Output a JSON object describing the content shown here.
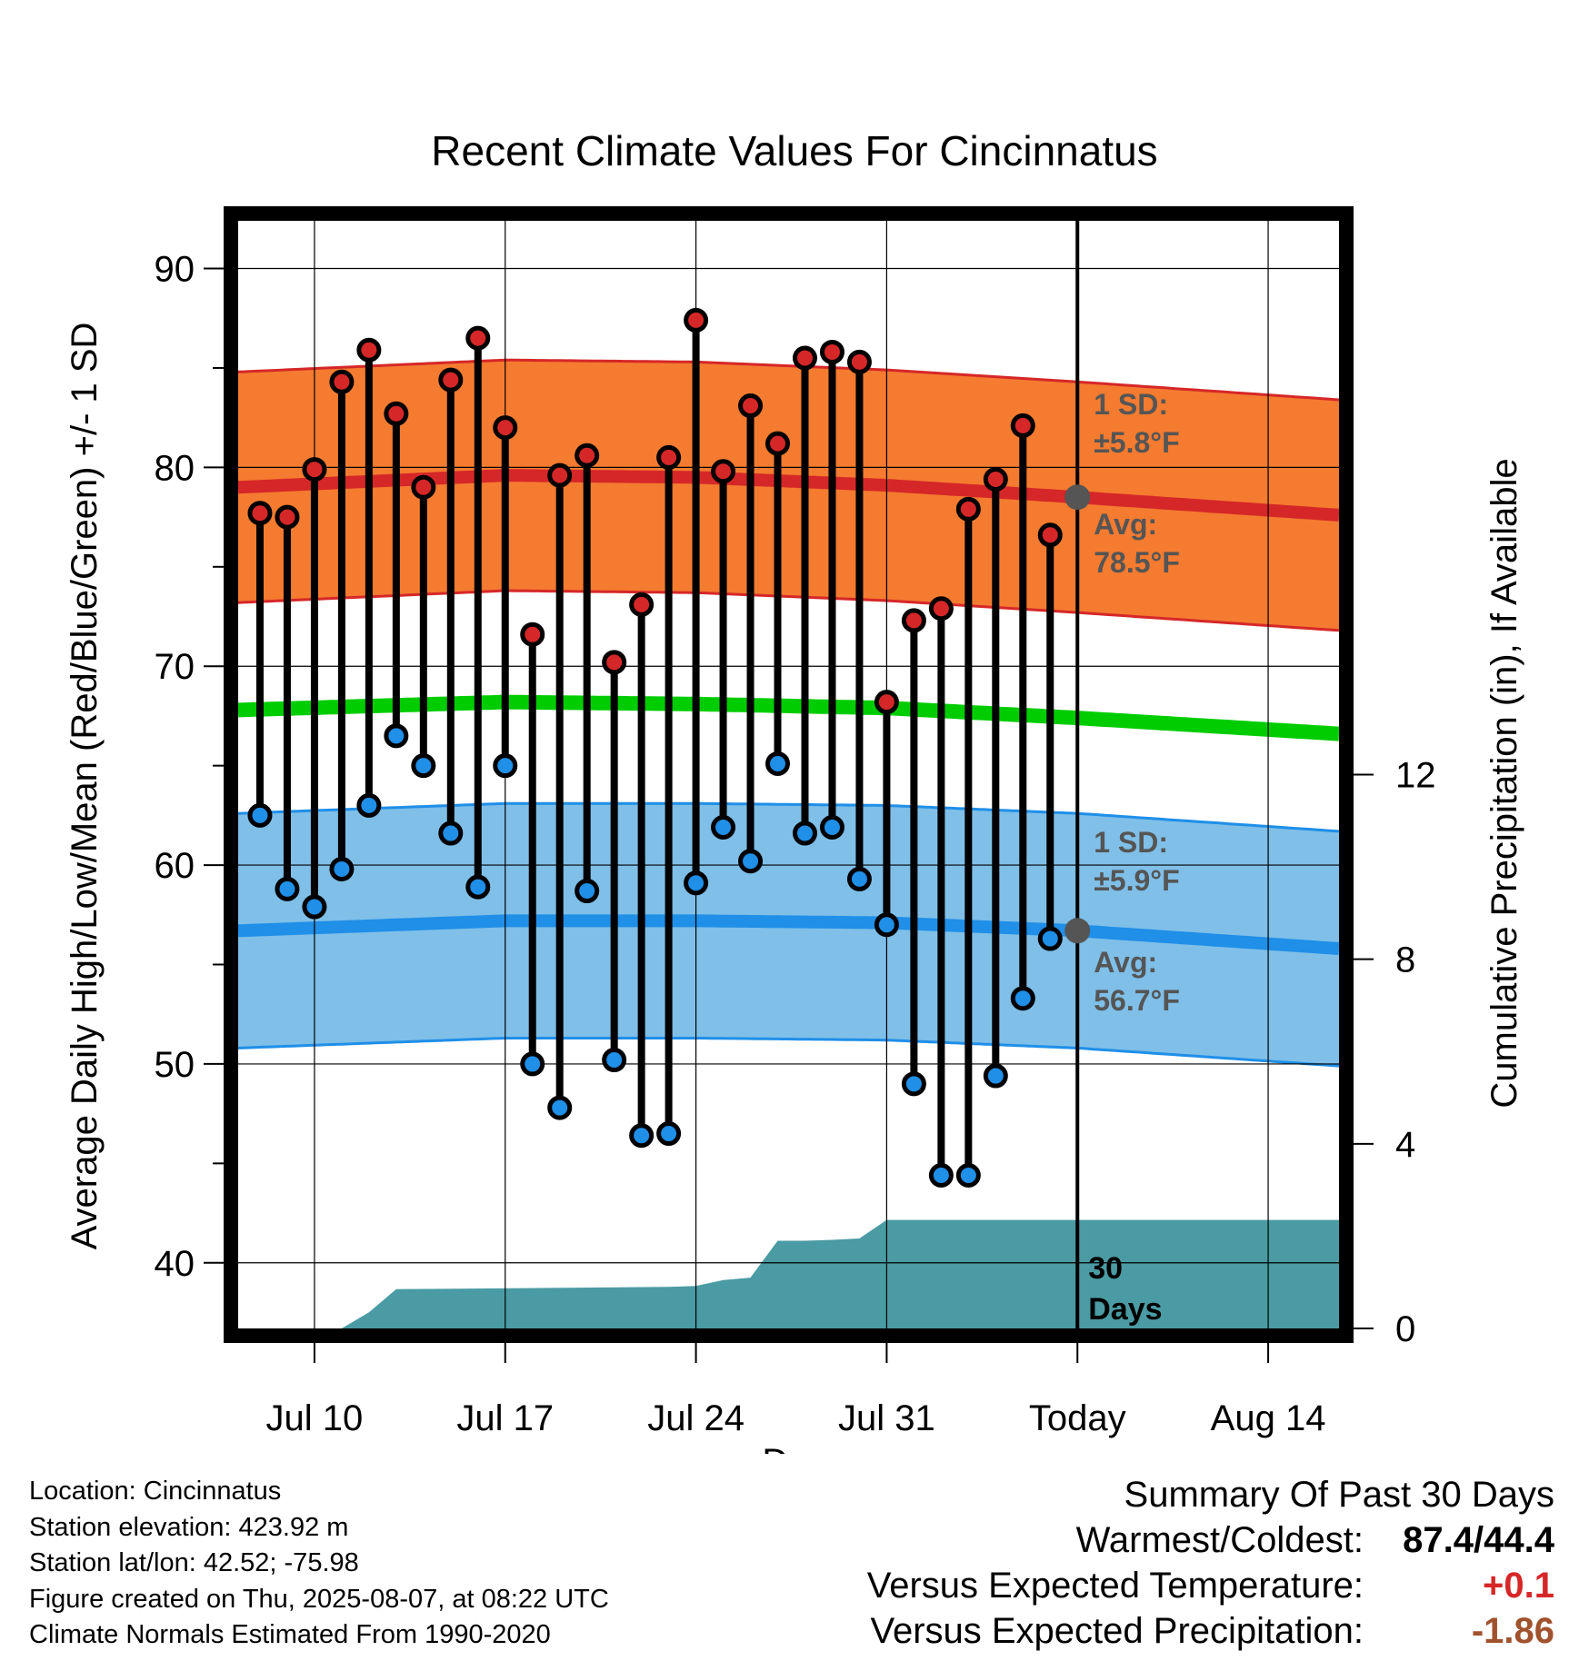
{
  "chart_data": {
    "type": "line",
    "title": "Recent Climate Values For Cincinnatus",
    "xlabel": "Day",
    "ylabel": "Average Daily High/Low/Mean (Red/Blue/Green) +/- 1 SD",
    "y2label": "Cumulative Precipitation (in), If Available",
    "ylim": [
      36.7,
      92.4
    ],
    "y2lim": [
      0,
      24
    ],
    "y_ticks": [
      40,
      50,
      60,
      70,
      80,
      90
    ],
    "y2_ticks": [
      0,
      4,
      8,
      12
    ],
    "x_ticks": [
      {
        "day": 10,
        "label": "Jul 10"
      },
      {
        "day": 17,
        "label": "Jul 17"
      },
      {
        "day": 24,
        "label": "Jul 24"
      },
      {
        "day": 31,
        "label": "Jul 31"
      },
      {
        "day": 38,
        "label": "Today"
      },
      {
        "day": 45,
        "label": "Aug 14"
      }
    ],
    "x_range_days": [
      7.2,
      47.6
    ],
    "today_day": 38,
    "grid": true,
    "days": [
      8,
      9,
      10,
      11,
      12,
      13,
      14,
      15,
      16,
      17,
      18,
      19,
      20,
      21,
      22,
      23,
      24,
      25,
      26,
      27,
      28,
      29,
      30,
      31,
      32,
      33,
      34,
      35,
      36,
      37
    ],
    "series": [
      {
        "name": "High",
        "color": "#d62728",
        "values": [
          77.7,
          77.5,
          79.9,
          84.3,
          85.9,
          82.7,
          79.0,
          84.4,
          86.5,
          82.0,
          71.6,
          79.6,
          80.6,
          70.2,
          73.1,
          80.5,
          87.4,
          79.8,
          83.1,
          81.2,
          85.5,
          85.8,
          85.3,
          68.2,
          72.3,
          72.9,
          77.9,
          79.4,
          82.1,
          76.6
        ]
      },
      {
        "name": "Low",
        "color": "#1f8fe8",
        "values": [
          62.5,
          58.8,
          57.9,
          59.8,
          63.0,
          66.5,
          65.0,
          61.6,
          58.9,
          65.0,
          50.0,
          47.8,
          58.7,
          50.2,
          46.4,
          46.5,
          59.1,
          61.9,
          60.2,
          65.1,
          61.6,
          61.9,
          59.3,
          57.0,
          49.0,
          44.4,
          44.4,
          49.4,
          53.3,
          56.3
        ]
      }
    ],
    "normals": {
      "high_mean": {
        "day": [
          7.2,
          17,
          24,
          31,
          38,
          47.6
        ],
        "values": [
          79.0,
          79.6,
          79.5,
          79.1,
          78.5,
          77.6
        ]
      },
      "high_sd": 5.8,
      "low_mean": {
        "day": [
          7.2,
          17,
          24,
          31,
          38,
          47.6
        ],
        "values": [
          56.7,
          57.2,
          57.2,
          57.1,
          56.7,
          55.8
        ]
      },
      "low_sd": 5.9,
      "mean": {
        "day": [
          7.2,
          17,
          24,
          31,
          38,
          47.6
        ],
        "values": [
          67.8,
          68.2,
          68.1,
          67.9,
          67.4,
          66.6
        ]
      }
    },
    "precip_cumulative": {
      "day": [
        7.2,
        11,
        12,
        13,
        23,
        24,
        25,
        26,
        27,
        28,
        29,
        30,
        31,
        32,
        38,
        47.6
      ],
      "values": [
        0,
        0,
        0.35,
        0.85,
        0.9,
        0.92,
        1.05,
        1.1,
        1.9,
        1.9,
        1.92,
        1.95,
        2.35,
        2.35,
        2.35,
        2.35
      ]
    },
    "annotations": {
      "high_sd": [
        "1 SD:",
        "±5.8°F"
      ],
      "high_avg": [
        "Avg:",
        "78.5°F"
      ],
      "low_sd": [
        "1 SD:",
        "±5.9°F"
      ],
      "low_avg": [
        "Avg:",
        "56.7°F"
      ],
      "precip_window": [
        "30",
        "Days"
      ]
    }
  },
  "info": {
    "location": "Location: Cincinnatus",
    "elevation": "Station elevation: 423.92 m",
    "latlon": "Station lat/lon: 42.52; -75.98",
    "created": "Figure created on Thu, 2025-08-07, at 08:22 UTC",
    "normals": "Climate Normals Estimated From 1990-2020"
  },
  "summary": {
    "title": "Summary Of Past 30 Days",
    "warm_cold_label": "Warmest/Coldest:",
    "warm_cold_value": "87.4/44.4",
    "temp_label": "Versus Expected Temperature:",
    "temp_value": "+0.1",
    "temp_color": "#d62728",
    "precip_label": "Versus Expected Precipitation:",
    "precip_value": "-1.86",
    "precip_color": "#a0522d"
  }
}
